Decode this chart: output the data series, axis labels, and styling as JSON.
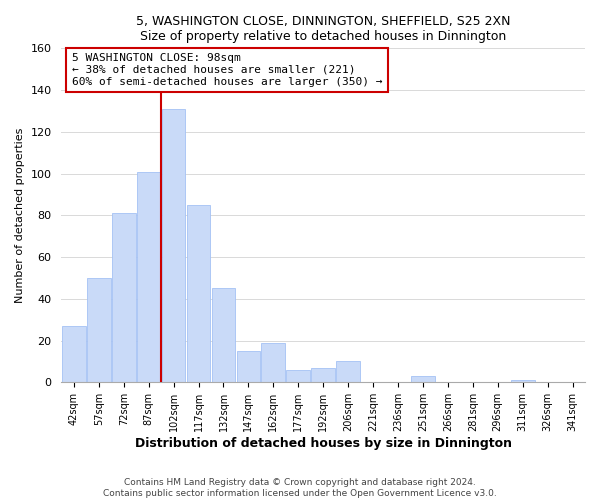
{
  "title": "5, WASHINGTON CLOSE, DINNINGTON, SHEFFIELD, S25 2XN",
  "subtitle": "Size of property relative to detached houses in Dinnington",
  "xlabel": "Distribution of detached houses by size in Dinnington",
  "ylabel": "Number of detached properties",
  "bar_labels": [
    "42sqm",
    "57sqm",
    "72sqm",
    "87sqm",
    "102sqm",
    "117sqm",
    "132sqm",
    "147sqm",
    "162sqm",
    "177sqm",
    "192sqm",
    "206sqm",
    "221sqm",
    "236sqm",
    "251sqm",
    "266sqm",
    "281sqm",
    "296sqm",
    "311sqm",
    "326sqm",
    "341sqm"
  ],
  "bar_values": [
    27,
    50,
    81,
    101,
    131,
    85,
    45,
    15,
    19,
    6,
    7,
    10,
    0,
    0,
    3,
    0,
    0,
    0,
    1,
    0,
    0
  ],
  "bar_color": "#c9daf8",
  "bar_edge_color": "#a4c2f4",
  "highlight_color": "#cc0000",
  "annotation_title": "5 WASHINGTON CLOSE: 98sqm",
  "annotation_line1": "← 38% of detached houses are smaller (221)",
  "annotation_line2": "60% of semi-detached houses are larger (350) →",
  "annotation_box_edge": "#cc0000",
  "ylim": [
    0,
    160
  ],
  "yticks": [
    0,
    20,
    40,
    60,
    80,
    100,
    120,
    140,
    160
  ],
  "footer1": "Contains HM Land Registry data © Crown copyright and database right 2024.",
  "footer2": "Contains public sector information licensed under the Open Government Licence v3.0.",
  "background_color": "#ffffff",
  "grid_color": "#d9d9d9"
}
